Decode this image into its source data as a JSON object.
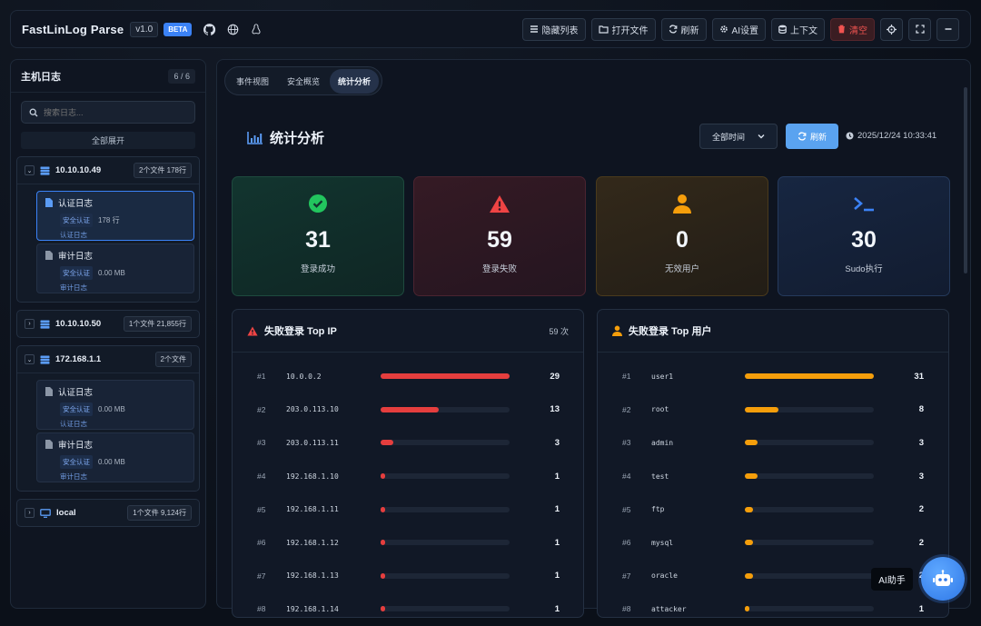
{
  "header": {
    "brand": "FastLinLog Parse",
    "version": "v1.0",
    "beta": "BETA",
    "buttons": {
      "hide_list": "隐藏列表",
      "open_file": "打开文件",
      "refresh": "刷新",
      "ai_settings": "AI设置",
      "context": "上下文",
      "clear": "清空"
    }
  },
  "sidebar": {
    "title": "主机日志",
    "count": "6 / 6",
    "search_placeholder": "搜索日志...",
    "expand_all": "全部展开",
    "hosts": [
      {
        "name": "10.10.10.49",
        "meta": "2个文件 178行",
        "expanded": true,
        "files": [
          {
            "name": "认证日志",
            "tag": "安全认证",
            "size": "178 行",
            "type": "认证日志",
            "active": true
          },
          {
            "name": "审计日志",
            "tag": "安全认证",
            "size": "0.00 MB",
            "type": "审计日志",
            "active": false
          }
        ]
      },
      {
        "name": "10.10.10.50",
        "meta": "1个文件 21,855行",
        "expanded": false
      },
      {
        "name": "172.168.1.1",
        "meta": "2个文件",
        "expanded": true,
        "files": [
          {
            "name": "认证日志",
            "tag": "安全认证",
            "size": "0.00 MB",
            "type": "认证日志",
            "active": false
          },
          {
            "name": "审计日志",
            "tag": "安全认证",
            "size": "0.00 MB",
            "type": "审计日志",
            "active": false
          }
        ]
      },
      {
        "name": "local",
        "meta": "1个文件 9,124行",
        "expanded": false
      }
    ]
  },
  "main": {
    "tabs": [
      "事件视图",
      "安全概览",
      "统计分析"
    ],
    "active_tab": "统计分析",
    "title": "统计分析",
    "time_select": "全部时间",
    "refresh_label": "刷新",
    "timestamp": "2025/12/24 10:33:41",
    "cards": [
      {
        "value": "31",
        "label": "登录成功",
        "color": "#22c55e",
        "icon": "check-circle-icon"
      },
      {
        "value": "59",
        "label": "登录失败",
        "color": "#ef4444",
        "icon": "warning-icon"
      },
      {
        "value": "0",
        "label": "无效用户",
        "color": "#f59e0b",
        "icon": "user-icon"
      },
      {
        "value": "30",
        "label": "Sudo执行",
        "color": "#3b82f6",
        "icon": "terminal-icon"
      }
    ],
    "top_ip": {
      "title": "失败登录 Top IP",
      "count": "59 次",
      "color": "#e53e3e",
      "rows": [
        {
          "rank": "#1",
          "name": "10.0.0.2",
          "value": 29,
          "fraction": 1.0
        },
        {
          "rank": "#2",
          "name": "203.0.113.10",
          "value": 13,
          "fraction": 0.45
        },
        {
          "rank": "#3",
          "name": "203.0.113.11",
          "value": 3,
          "fraction": 0.1
        },
        {
          "rank": "#4",
          "name": "192.168.1.10",
          "value": 1,
          "fraction": 0.034
        },
        {
          "rank": "#5",
          "name": "192.168.1.11",
          "value": 1,
          "fraction": 0.034
        },
        {
          "rank": "#6",
          "name": "192.168.1.12",
          "value": 1,
          "fraction": 0.034
        },
        {
          "rank": "#7",
          "name": "192.168.1.13",
          "value": 1,
          "fraction": 0.034
        },
        {
          "rank": "#8",
          "name": "192.168.1.14",
          "value": 1,
          "fraction": 0.034
        }
      ]
    },
    "top_user": {
      "title": "失败登录 Top 用户",
      "color": "#f59e0b",
      "rows": [
        {
          "rank": "#1",
          "name": "user1",
          "value": 31,
          "fraction": 1.0
        },
        {
          "rank": "#2",
          "name": "root",
          "value": 8,
          "fraction": 0.26
        },
        {
          "rank": "#3",
          "name": "admin",
          "value": 3,
          "fraction": 0.1
        },
        {
          "rank": "#4",
          "name": "test",
          "value": 3,
          "fraction": 0.1
        },
        {
          "rank": "#5",
          "name": "ftp",
          "value": 2,
          "fraction": 0.065
        },
        {
          "rank": "#6",
          "name": "mysql",
          "value": 2,
          "fraction": 0.065
        },
        {
          "rank": "#7",
          "name": "oracle",
          "value": 2,
          "fraction": 0.065
        },
        {
          "rank": "#8",
          "name": "attacker",
          "value": 1,
          "fraction": 0.032
        }
      ]
    }
  },
  "assistant": {
    "label": "AI助手"
  }
}
